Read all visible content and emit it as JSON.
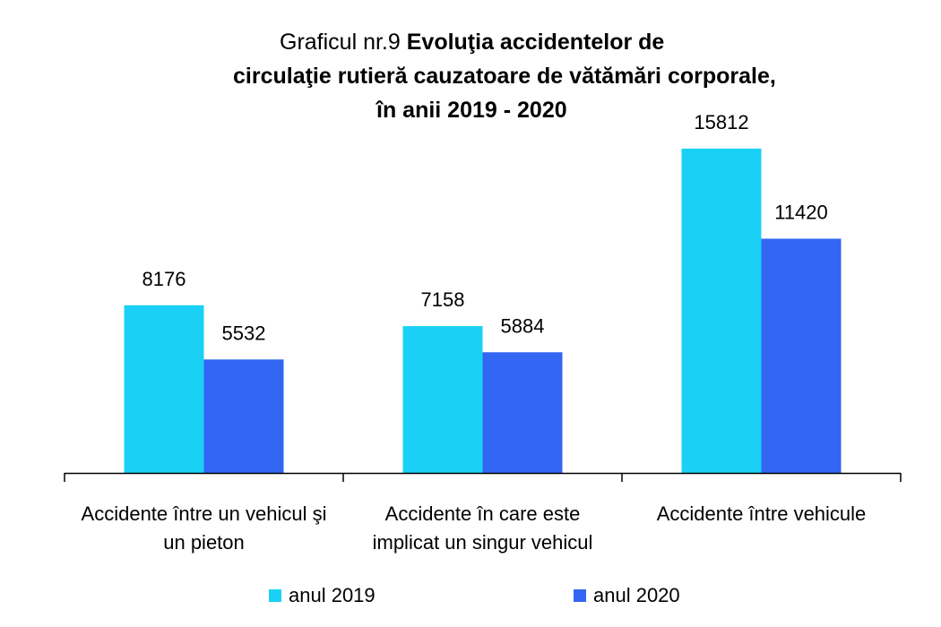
{
  "chart_data": {
    "type": "bar",
    "title_prefix": "Graficul nr.9",
    "title_lines": [
      "Evoluţia accidentelor de",
      "circulaţie rutieră cauzatoare de vătămări corporale,",
      "în anii 2019 - 2020"
    ],
    "categories": [
      [
        "Accidente între un vehicul şi",
        "un pieton"
      ],
      [
        "Accidente în care este",
        "implicat un singur vehicul"
      ],
      [
        "Accidente între vehicule"
      ]
    ],
    "series": [
      {
        "name": "anul 2019",
        "color": "#1AD1F5",
        "values": [
          8176,
          7158,
          15812
        ]
      },
      {
        "name": "anul 2020",
        "color": "#3366F2",
        "values": [
          5532,
          5884,
          11420
        ]
      }
    ],
    "ylim": [
      0,
      20000
    ],
    "grid": false,
    "legend_position": "bottom"
  }
}
